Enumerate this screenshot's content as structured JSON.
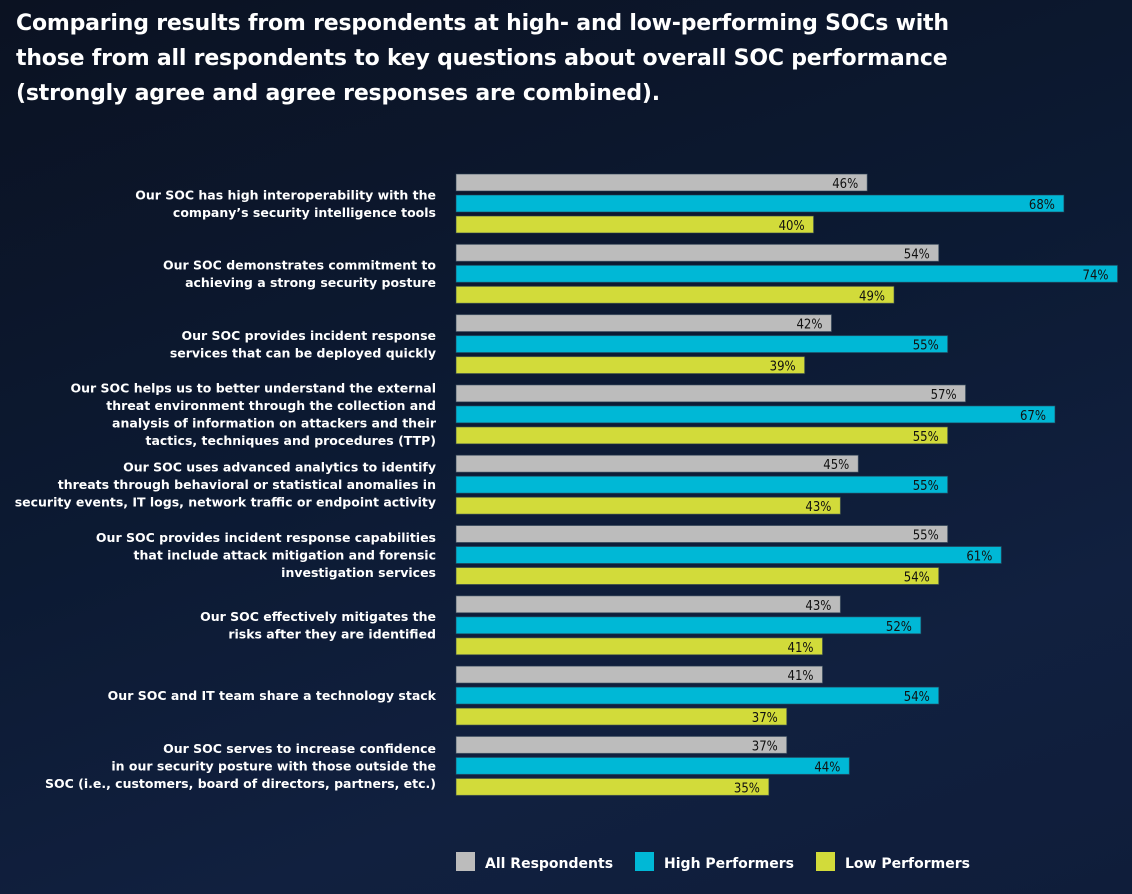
{
  "title_lines": [
    "Comparing results from respondents at high- and low-performing SOCs with",
    "those from all respondents to key questions about overall SOC performance",
    "(strongly agree and agree responses are combined)."
  ],
  "chart_data": {
    "type": "bar",
    "orientation": "horizontal",
    "title": "Comparing results from respondents at high- and low-performing SOCs with those from all respondents to key questions about overall SOC performance (strongly agree and agree responses are combined).",
    "xlabel": "",
    "ylabel": "",
    "xlim": [
      0,
      100
    ],
    "grid": false,
    "legend_position": "bottom",
    "value_suffix": "%",
    "categories": [
      [
        "Our SOC has high interoperability with the",
        "company’s security intelligence tools"
      ],
      [
        "Our SOC demonstrates commitment to",
        "achieving a strong security posture"
      ],
      [
        "Our SOC provides incident response",
        "services that can be deployed quickly"
      ],
      [
        "Our SOC helps us to better understand the external",
        "threat environment through the collection and",
        "analysis of information on attackers and their",
        "tactics, techniques and procedures (TTP)"
      ],
      [
        "Our SOC uses advanced analytics to identify",
        "threats through behavioral or statistical anomalies in",
        "security events, IT logs, network traffic or endpoint activity"
      ],
      [
        "Our SOC provides incident response capabilities",
        "that include attack mitigation and forensic",
        "investigation services"
      ],
      [
        "Our SOC effectively mitigates the",
        "risks after they are identified"
      ],
      [
        "Our SOC and IT team share a technology stack"
      ],
      [
        "Our SOC serves to increase confidence",
        "in our security posture with those outside the",
        "SOC (i.e., customers, board of directors, partners, etc.)"
      ]
    ],
    "series": [
      {
        "name": "All Respondents",
        "color": "#bcbcbc",
        "values": [
          46,
          54,
          42,
          57,
          45,
          55,
          43,
          41,
          37
        ]
      },
      {
        "name": "High Performers",
        "color": "#00b8d6",
        "values": [
          68,
          74,
          55,
          67,
          55,
          61,
          52,
          54,
          44
        ]
      },
      {
        "name": "Low Performers",
        "color": "#d2db3a",
        "values": [
          40,
          49,
          39,
          55,
          43,
          54,
          41,
          37,
          35
        ]
      }
    ]
  },
  "legend": [
    {
      "label": "All Respondents",
      "color": "#bcbcbc"
    },
    {
      "label": "High Performers",
      "color": "#00b8d6"
    },
    {
      "label": "Low Performers",
      "color": "#d2db3a"
    }
  ]
}
